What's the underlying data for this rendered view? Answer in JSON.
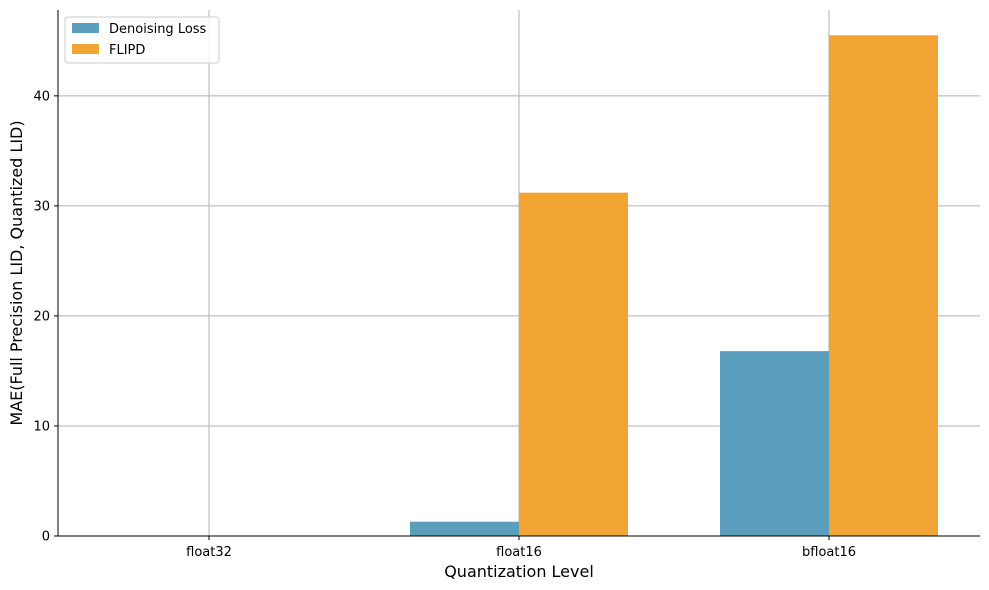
{
  "chart_data": {
    "type": "bar",
    "title": "",
    "xlabel": "Quantization Level",
    "ylabel": "MAE(Full Precision LID, Quantized LID)",
    "categories": [
      "float32",
      "float16",
      "bfloat16"
    ],
    "series": [
      {
        "name": "Denoising Loss",
        "values": [
          0,
          1.3,
          16.8
        ],
        "color": "#5a9dbd"
      },
      {
        "name": "FLIPD",
        "values": [
          0,
          31.2,
          45.5
        ],
        "color": "#f2a535"
      }
    ],
    "ylim": [
      0,
      47.8
    ],
    "yticks": [
      0,
      10,
      20,
      30,
      40
    ],
    "grid": true,
    "legend_position": "top-left"
  }
}
